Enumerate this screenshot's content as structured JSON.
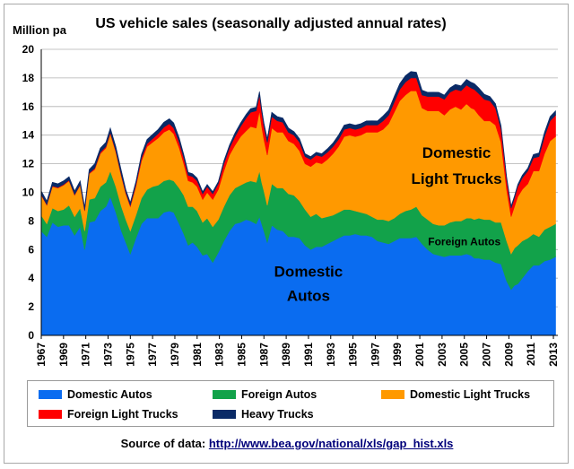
{
  "chart_data": {
    "type": "area",
    "stacked": true,
    "title": "US vehicle sales (seasonally adjusted annual rates)",
    "ylabel": "Million pa",
    "ylim": [
      0,
      20
    ],
    "yticks": [
      0,
      2,
      4,
      6,
      8,
      10,
      12,
      14,
      16,
      18,
      20
    ],
    "xlim": [
      1967,
      2013.4
    ],
    "xticks": [
      "1967",
      "1969",
      "1971",
      "1973",
      "1975",
      "1977",
      "1979",
      "1981",
      "1983",
      "1985",
      "1987",
      "1989",
      "1991",
      "1993",
      "1995",
      "1997",
      "1999",
      "2001",
      "2003",
      "2005",
      "2007",
      "2009",
      "2011",
      "2013"
    ],
    "grid": "horizontal",
    "x": [
      1967.0,
      1967.5,
      1968.0,
      1968.5,
      1969.0,
      1969.5,
      1970.0,
      1970.5,
      1970.9,
      1971.3,
      1971.8,
      1972.3,
      1972.8,
      1973.2,
      1973.7,
      1974.2,
      1974.6,
      1975.0,
      1975.5,
      1976.0,
      1976.5,
      1977.0,
      1977.5,
      1978.0,
      1978.5,
      1978.9,
      1979.4,
      1979.8,
      1980.2,
      1980.6,
      1981.0,
      1981.5,
      1981.9,
      1982.4,
      1982.9,
      1983.4,
      1983.9,
      1984.4,
      1984.9,
      1985.4,
      1985.8,
      1986.3,
      1986.6,
      1986.8,
      1987.0,
      1987.3,
      1987.7,
      1988.2,
      1988.7,
      1989.2,
      1989.7,
      1990.2,
      1990.7,
      1991.2,
      1991.7,
      1992.2,
      1992.7,
      1993.2,
      1993.7,
      1994.2,
      1994.7,
      1995.2,
      1995.7,
      1996.2,
      1996.7,
      1997.2,
      1997.7,
      1998.2,
      1998.7,
      1999.2,
      1999.7,
      2000.2,
      2000.7,
      2001.2,
      2001.7,
      2002.2,
      2002.7,
      2003.2,
      2003.7,
      2004.2,
      2004.7,
      2005.2,
      2005.6,
      2005.9,
      2006.3,
      2006.8,
      2007.3,
      2007.8,
      2008.3,
      2008.8,
      2009.2,
      2009.5,
      2009.8,
      2010.2,
      2010.7,
      2011.2,
      2011.7,
      2012.2,
      2012.7,
      2013.2
    ],
    "series": [
      {
        "name": "Domestic Autos",
        "color": "#0a6cf0",
        "values": [
          7.3,
          6.9,
          7.9,
          7.6,
          7.7,
          7.7,
          7.0,
          7.6,
          6.0,
          7.9,
          8.0,
          8.7,
          9.0,
          9.7,
          8.6,
          7.3,
          6.5,
          5.7,
          6.8,
          7.8,
          8.2,
          8.2,
          8.2,
          8.6,
          8.7,
          8.6,
          7.8,
          7.1,
          6.3,
          6.5,
          6.2,
          5.6,
          5.7,
          5.1,
          5.8,
          6.6,
          7.3,
          7.8,
          7.9,
          8.1,
          8.0,
          7.8,
          8.3,
          7.8,
          7.3,
          6.5,
          7.7,
          7.4,
          7.3,
          6.9,
          6.9,
          6.8,
          6.3,
          6.0,
          6.2,
          6.2,
          6.4,
          6.6,
          6.8,
          7.0,
          7.0,
          7.1,
          7.0,
          7.0,
          6.9,
          6.6,
          6.5,
          6.4,
          6.6,
          6.8,
          6.8,
          6.8,
          6.9,
          6.4,
          6.0,
          5.7,
          5.6,
          5.5,
          5.6,
          5.6,
          5.6,
          5.7,
          5.6,
          5.4,
          5.4,
          5.3,
          5.3,
          5.1,
          5.0,
          3.8,
          3.2,
          3.5,
          3.6,
          4.0,
          4.5,
          4.9,
          4.9,
          5.2,
          5.3,
          5.5
        ]
      },
      {
        "name": "Foreign Autos",
        "color": "#12a24a",
        "values": [
          1.1,
          0.9,
          1.0,
          1.1,
          1.1,
          1.4,
          1.3,
          1.3,
          1.3,
          1.6,
          1.6,
          1.7,
          1.7,
          1.8,
          1.8,
          1.7,
          1.6,
          1.6,
          1.6,
          1.8,
          2.0,
          2.2,
          2.3,
          2.2,
          2.2,
          2.2,
          2.5,
          2.7,
          2.7,
          2.5,
          2.5,
          2.3,
          2.5,
          2.5,
          2.3,
          2.4,
          2.5,
          2.5,
          2.6,
          2.6,
          2.8,
          2.9,
          3.2,
          2.9,
          2.8,
          2.6,
          2.9,
          2.9,
          3.0,
          3.0,
          2.9,
          2.6,
          2.5,
          2.3,
          2.3,
          2.0,
          1.9,
          1.8,
          1.8,
          1.8,
          1.8,
          1.6,
          1.6,
          1.5,
          1.4,
          1.5,
          1.6,
          1.6,
          1.6,
          1.7,
          1.9,
          2.0,
          2.1,
          2.0,
          2.1,
          2.1,
          2.1,
          2.2,
          2.3,
          2.4,
          2.4,
          2.5,
          2.6,
          2.7,
          2.8,
          2.8,
          2.8,
          2.8,
          2.9,
          2.8,
          2.5,
          2.6,
          2.7,
          2.6,
          2.3,
          2.2,
          2.0,
          2.2,
          2.3,
          2.3
        ]
      },
      {
        "name": "Domestic Light Trucks",
        "color": "#ff9900",
        "values": [
          1.4,
          1.3,
          1.5,
          1.6,
          1.7,
          1.7,
          1.5,
          1.6,
          1.4,
          1.8,
          2.0,
          2.3,
          2.4,
          2.6,
          2.4,
          2.1,
          1.8,
          1.7,
          2.0,
          2.6,
          3.0,
          3.1,
          3.3,
          3.4,
          3.5,
          3.3,
          2.8,
          2.2,
          1.8,
          1.7,
          1.7,
          1.6,
          1.8,
          1.9,
          2.1,
          2.5,
          2.8,
          3.0,
          3.4,
          3.6,
          3.8,
          3.8,
          4.2,
          3.9,
          3.6,
          3.5,
          3.9,
          3.9,
          3.9,
          3.7,
          3.6,
          3.5,
          3.2,
          3.5,
          3.6,
          3.8,
          4.0,
          4.3,
          4.6,
          5.1,
          5.2,
          5.2,
          5.4,
          5.7,
          5.9,
          6.1,
          6.3,
          6.8,
          7.4,
          7.9,
          8.1,
          8.3,
          8.1,
          7.5,
          7.6,
          7.9,
          8.0,
          7.7,
          7.9,
          8.0,
          7.8,
          8.0,
          7.7,
          7.7,
          7.2,
          6.9,
          6.9,
          6.8,
          5.6,
          3.6,
          2.6,
          2.9,
          3.4,
          3.6,
          3.8,
          4.4,
          4.6,
          5.3,
          6.0,
          6.1
        ]
      },
      {
        "name": "Foreign Light Trucks",
        "color": "#ff0000",
        "values": [
          0.05,
          0.05,
          0.05,
          0.05,
          0.05,
          0.05,
          0.05,
          0.05,
          0.05,
          0.05,
          0.1,
          0.1,
          0.1,
          0.1,
          0.1,
          0.1,
          0.1,
          0.1,
          0.15,
          0.2,
          0.2,
          0.25,
          0.3,
          0.35,
          0.4,
          0.4,
          0.4,
          0.4,
          0.4,
          0.4,
          0.4,
          0.4,
          0.4,
          0.4,
          0.4,
          0.5,
          0.5,
          0.6,
          0.7,
          0.9,
          1.0,
          1.2,
          1.1,
          1.0,
          0.9,
          0.9,
          0.8,
          0.8,
          0.7,
          0.6,
          0.6,
          0.6,
          0.5,
          0.5,
          0.5,
          0.5,
          0.5,
          0.5,
          0.5,
          0.5,
          0.5,
          0.5,
          0.5,
          0.5,
          0.5,
          0.5,
          0.6,
          0.6,
          0.7,
          0.8,
          0.9,
          0.9,
          0.9,
          0.9,
          1.0,
          1.0,
          1.0,
          1.1,
          1.2,
          1.2,
          1.3,
          1.3,
          1.4,
          1.4,
          1.5,
          1.5,
          1.4,
          1.2,
          0.9,
          0.7,
          0.6,
          0.6,
          0.7,
          0.8,
          0.9,
          0.9,
          1.0,
          1.2,
          1.4,
          1.5
        ]
      },
      {
        "name": "Heavy Trucks",
        "color": "#0a2a66",
        "values": [
          0.25,
          0.25,
          0.25,
          0.25,
          0.25,
          0.25,
          0.25,
          0.25,
          0.25,
          0.25,
          0.3,
          0.3,
          0.3,
          0.3,
          0.3,
          0.3,
          0.2,
          0.2,
          0.2,
          0.25,
          0.3,
          0.3,
          0.3,
          0.35,
          0.35,
          0.35,
          0.3,
          0.25,
          0.2,
          0.2,
          0.2,
          0.15,
          0.15,
          0.15,
          0.15,
          0.2,
          0.2,
          0.25,
          0.25,
          0.25,
          0.25,
          0.25,
          0.25,
          0.25,
          0.25,
          0.25,
          0.3,
          0.3,
          0.3,
          0.3,
          0.25,
          0.25,
          0.2,
          0.2,
          0.2,
          0.2,
          0.25,
          0.25,
          0.3,
          0.3,
          0.3,
          0.3,
          0.3,
          0.3,
          0.3,
          0.3,
          0.35,
          0.35,
          0.4,
          0.4,
          0.45,
          0.45,
          0.4,
          0.35,
          0.3,
          0.3,
          0.3,
          0.3,
          0.3,
          0.35,
          0.35,
          0.4,
          0.4,
          0.4,
          0.4,
          0.35,
          0.3,
          0.3,
          0.25,
          0.2,
          0.15,
          0.15,
          0.15,
          0.2,
          0.2,
          0.25,
          0.25,
          0.3,
          0.3,
          0.3
        ]
      }
    ],
    "annotations": [
      {
        "text": "Domestic",
        "x": 2004.3,
        "y": 12.4,
        "size": 17
      },
      {
        "text": "Light Trucks",
        "x": 2004.3,
        "y": 10.6,
        "size": 17
      },
      {
        "text": "Foreign Autos",
        "x": 2005.0,
        "y": 6.3,
        "size": 12
      },
      {
        "text": "Domestic",
        "x": 1991.0,
        "y": 4.1,
        "size": 17
      },
      {
        "text": "Autos",
        "x": 1991.0,
        "y": 2.4,
        "size": 17
      }
    ],
    "legend": "bottom"
  },
  "source": {
    "label": "Source of data:",
    "url": "http://www.bea.gov/national/xls/gap_hist.xls"
  }
}
